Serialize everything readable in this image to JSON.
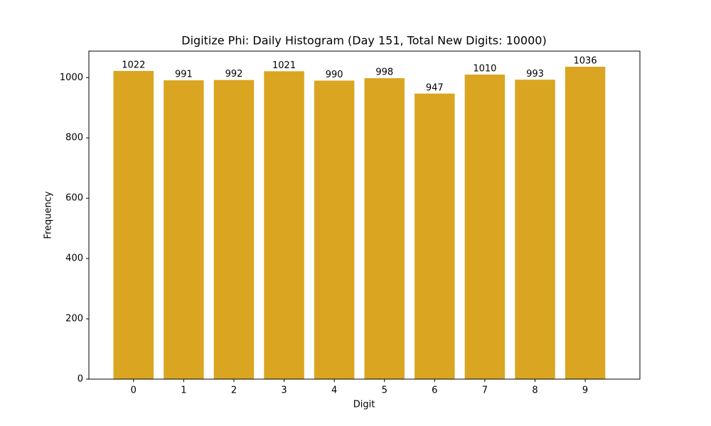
{
  "chart_data": {
    "type": "bar",
    "title": "Digitize Phi: Daily Histogram (Day 151, Total New Digits: 10000)",
    "x_label": "Digit",
    "y_label": "Frequency",
    "categories": [
      "0",
      "1",
      "2",
      "3",
      "4",
      "5",
      "6",
      "7",
      "8",
      "9"
    ],
    "values": [
      1022,
      991,
      992,
      1021,
      990,
      998,
      947,
      1010,
      993,
      1036
    ],
    "color": "#daa520",
    "ylim": [
      0,
      1087.8
    ],
    "yticks": [
      0,
      200,
      400,
      600,
      800,
      1000
    ],
    "grid": false
  }
}
